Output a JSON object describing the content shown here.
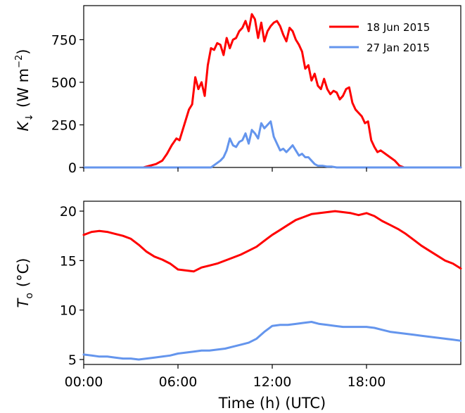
{
  "chart_data": [
    {
      "type": "line",
      "ylabel_main": "K",
      "ylabel_sub": "↓",
      "ylabel_units_pre": "(W m",
      "ylabel_units_exp": "−2",
      "ylabel_units_post": ")",
      "x_unit": "hours of day (UTC)",
      "xlim": [
        0,
        24
      ],
      "ylim": [
        0,
        950
      ],
      "yticks": [
        0,
        250,
        500,
        750
      ],
      "ytick_labels": [
        "0",
        "250",
        "500",
        "750"
      ],
      "xticks": [
        0,
        6,
        12,
        18
      ],
      "grid": false,
      "legend_position": "top-right",
      "series": [
        {
          "name": "18 Jun 2015",
          "color": "#ff0000",
          "x": [
            0,
            3.8,
            4.2,
            4.6,
            5.0,
            5.3,
            5.6,
            5.9,
            6.1,
            6.4,
            6.7,
            6.9,
            7.1,
            7.3,
            7.5,
            7.7,
            7.9,
            8.1,
            8.3,
            8.5,
            8.7,
            8.9,
            9.1,
            9.3,
            9.5,
            9.7,
            9.9,
            10.1,
            10.3,
            10.5,
            10.7,
            10.9,
            11.1,
            11.3,
            11.5,
            11.7,
            11.9,
            12.1,
            12.3,
            12.5,
            12.7,
            12.9,
            13.1,
            13.3,
            13.5,
            13.7,
            13.9,
            14.1,
            14.3,
            14.5,
            14.7,
            14.9,
            15.1,
            15.3,
            15.5,
            15.7,
            15.9,
            16.1,
            16.3,
            16.5,
            16.7,
            16.9,
            17.1,
            17.3,
            17.5,
            17.7,
            17.9,
            18.1,
            18.3,
            18.5,
            18.7,
            18.9,
            19.2,
            19.5,
            19.8,
            20.1,
            20.4,
            20.7,
            21.0,
            24.0
          ],
          "y": [
            0,
            0,
            10,
            20,
            40,
            80,
            130,
            170,
            160,
            250,
            340,
            370,
            530,
            460,
            500,
            420,
            600,
            700,
            690,
            730,
            720,
            660,
            760,
            700,
            750,
            760,
            800,
            820,
            860,
            800,
            900,
            870,
            760,
            850,
            740,
            800,
            830,
            850,
            860,
            830,
            780,
            740,
            820,
            800,
            750,
            720,
            680,
            580,
            600,
            510,
            550,
            480,
            460,
            520,
            460,
            430,
            450,
            440,
            400,
            420,
            460,
            470,
            380,
            340,
            320,
            300,
            260,
            270,
            160,
            120,
            90,
            100,
            80,
            60,
            40,
            10,
            0,
            0,
            0,
            0
          ]
        },
        {
          "name": "27 Jan 2015",
          "color": "#6495ed",
          "x": [
            0,
            8.1,
            8.4,
            8.7,
            8.9,
            9.1,
            9.3,
            9.5,
            9.7,
            9.9,
            10.1,
            10.3,
            10.5,
            10.7,
            10.9,
            11.1,
            11.3,
            11.5,
            11.7,
            11.9,
            12.1,
            12.3,
            12.5,
            12.7,
            12.9,
            13.1,
            13.3,
            13.5,
            13.7,
            13.9,
            14.1,
            14.3,
            14.5,
            14.7,
            14.9,
            15.2,
            15.5,
            15.8,
            16.1,
            16.6,
            17.0,
            24.0
          ],
          "y": [
            0,
            0,
            20,
            40,
            60,
            100,
            170,
            130,
            120,
            150,
            160,
            200,
            140,
            220,
            200,
            170,
            260,
            230,
            250,
            270,
            180,
            140,
            100,
            110,
            90,
            110,
            130,
            100,
            70,
            80,
            60,
            60,
            40,
            20,
            10,
            10,
            5,
            5,
            0,
            0,
            0,
            0
          ]
        }
      ]
    },
    {
      "type": "line",
      "ylabel_main": "T",
      "ylabel_sub": "o",
      "ylabel_units": "(°C)",
      "xlabel": "Time (h) (UTC)",
      "x_unit": "hours of day (UTC)",
      "xlim": [
        0,
        24
      ],
      "ylim": [
        4.5,
        21
      ],
      "yticks": [
        5,
        10,
        15,
        20
      ],
      "ytick_labels": [
        "5",
        "10",
        "15",
        "20"
      ],
      "xticks": [
        0,
        6,
        12,
        18
      ],
      "xtick_labels": [
        "00:00",
        "06:00",
        "12:00",
        "18:00"
      ],
      "grid": false,
      "series": [
        {
          "name": "18 Jun 2015",
          "color": "#ff0000",
          "x": [
            0,
            0.5,
            1.0,
            1.5,
            2.0,
            2.5,
            3.0,
            3.5,
            4.0,
            4.5,
            5.0,
            5.5,
            6.0,
            6.5,
            7.0,
            7.5,
            8.0,
            8.5,
            9.0,
            9.5,
            10.0,
            10.5,
            11.0,
            11.5,
            12.0,
            12.5,
            13.0,
            13.5,
            14.0,
            14.5,
            15.0,
            15.5,
            16.0,
            16.5,
            17.0,
            17.5,
            18.0,
            18.5,
            19.0,
            19.5,
            20.0,
            20.5,
            21.0,
            21.5,
            22.0,
            22.5,
            23.0,
            23.5,
            24.0
          ],
          "y": [
            17.6,
            17.9,
            18.0,
            17.9,
            17.7,
            17.5,
            17.2,
            16.6,
            15.9,
            15.4,
            15.1,
            14.7,
            14.1,
            14.0,
            13.9,
            14.3,
            14.5,
            14.7,
            15.0,
            15.3,
            15.6,
            16.0,
            16.4,
            17.0,
            17.6,
            18.1,
            18.6,
            19.1,
            19.4,
            19.7,
            19.8,
            19.9,
            20.0,
            19.9,
            19.8,
            19.6,
            19.8,
            19.5,
            19.0,
            18.6,
            18.2,
            17.7,
            17.1,
            16.5,
            16.0,
            15.5,
            15.0,
            14.7,
            14.2
          ]
        },
        {
          "name": "27 Jan 2015",
          "color": "#6495ed",
          "x": [
            0,
            0.5,
            1.0,
            1.5,
            2.0,
            2.5,
            3.0,
            3.5,
            4.0,
            4.5,
            5.0,
            5.5,
            6.0,
            6.5,
            7.0,
            7.5,
            8.0,
            8.5,
            9.0,
            9.5,
            10.0,
            10.5,
            11.0,
            11.5,
            12.0,
            12.5,
            13.0,
            13.5,
            14.0,
            14.5,
            15.0,
            15.5,
            16.0,
            16.5,
            17.0,
            17.5,
            18.0,
            18.5,
            19.0,
            19.5,
            20.0,
            20.5,
            21.0,
            21.5,
            22.0,
            22.5,
            23.0,
            23.5,
            24.0
          ],
          "y": [
            5.5,
            5.4,
            5.3,
            5.3,
            5.2,
            5.1,
            5.1,
            5.0,
            5.1,
            5.2,
            5.3,
            5.4,
            5.6,
            5.7,
            5.8,
            5.9,
            5.9,
            6.0,
            6.1,
            6.3,
            6.5,
            6.7,
            7.1,
            7.8,
            8.4,
            8.5,
            8.5,
            8.6,
            8.7,
            8.8,
            8.6,
            8.5,
            8.4,
            8.3,
            8.3,
            8.3,
            8.3,
            8.2,
            8.0,
            7.8,
            7.7,
            7.6,
            7.5,
            7.4,
            7.3,
            7.2,
            7.1,
            7.0,
            6.9
          ]
        }
      ]
    }
  ]
}
